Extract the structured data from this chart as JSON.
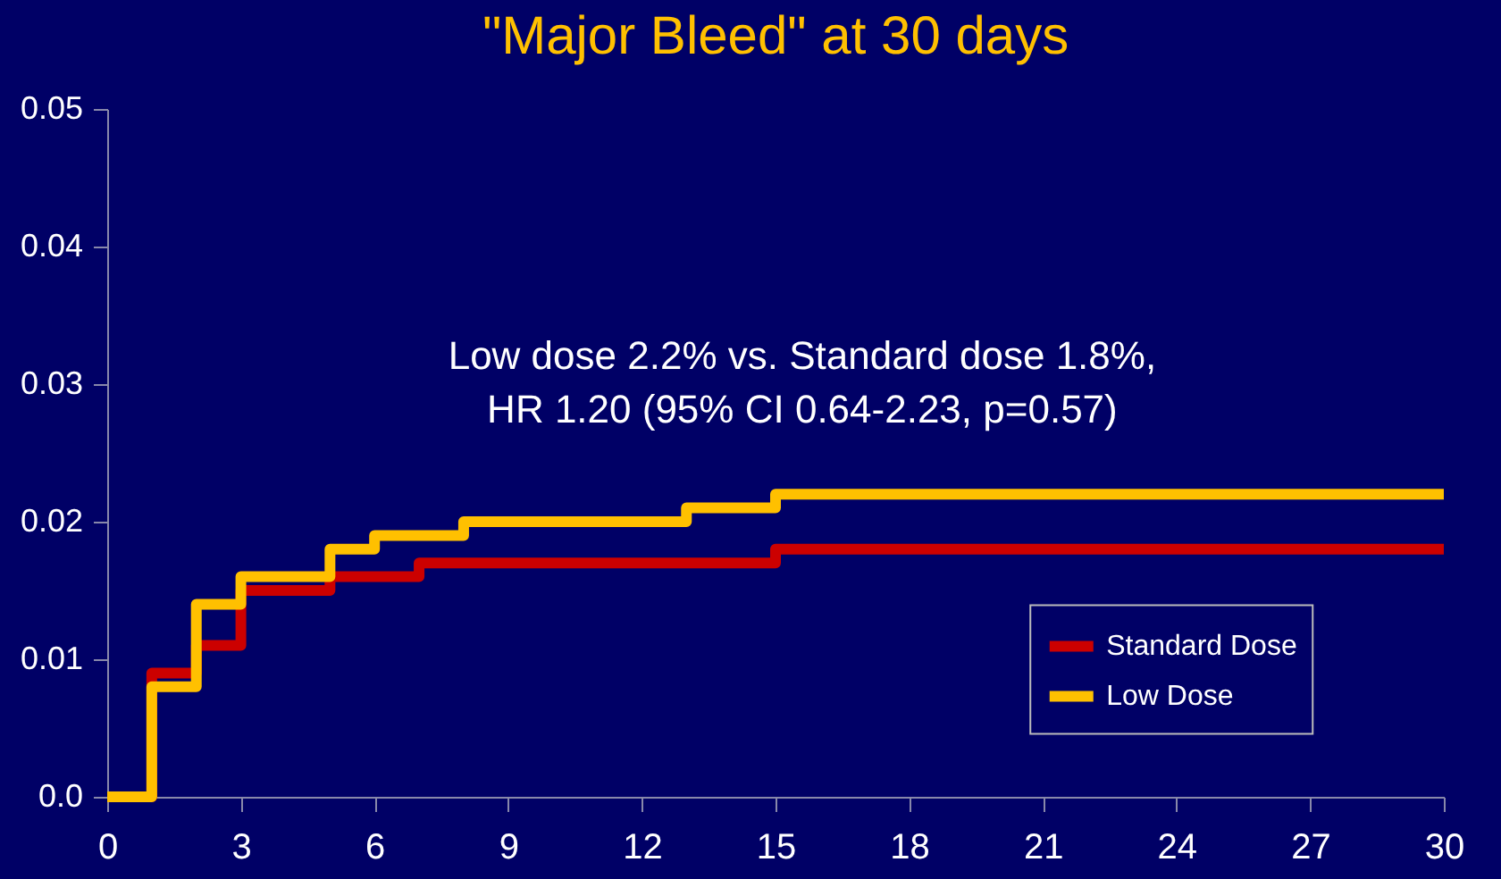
{
  "chart_data": {
    "type": "step",
    "title": "\"Major Bleed\" at 30 days",
    "annotations": [
      "Low dose 2.2% vs. Standard dose 1.8%,",
      "HR 1.20 (95% CI 0.64-2.23, p=0.57)"
    ],
    "series": [
      {
        "name": "Standard Dose",
        "color": "#cc0000",
        "x": [
          0,
          1,
          2,
          3,
          5,
          7,
          15,
          30
        ],
        "values": [
          0,
          0.009,
          0.011,
          0.015,
          0.016,
          0.017,
          0.018,
          0.018
        ]
      },
      {
        "name": "Low Dose",
        "color": "#ffc000",
        "x": [
          0,
          1,
          2,
          3,
          5,
          6,
          8,
          13,
          15,
          30
        ],
        "values": [
          0,
          0.008,
          0.014,
          0.016,
          0.018,
          0.019,
          0.02,
          0.021,
          0.022,
          0.022
        ]
      }
    ],
    "xlim": [
      0,
      30
    ],
    "xticks": [
      0,
      3,
      6,
      9,
      12,
      15,
      18,
      21,
      24,
      27,
      30
    ],
    "ylim": [
      0,
      0.05
    ],
    "yticks": [
      {
        "value": 0,
        "label": "0.0"
      },
      0.01,
      0.02,
      0.03,
      0.04,
      0.05
    ],
    "grid": false,
    "legend": "bottom right",
    "line_style": "solid",
    "marker": "none"
  }
}
